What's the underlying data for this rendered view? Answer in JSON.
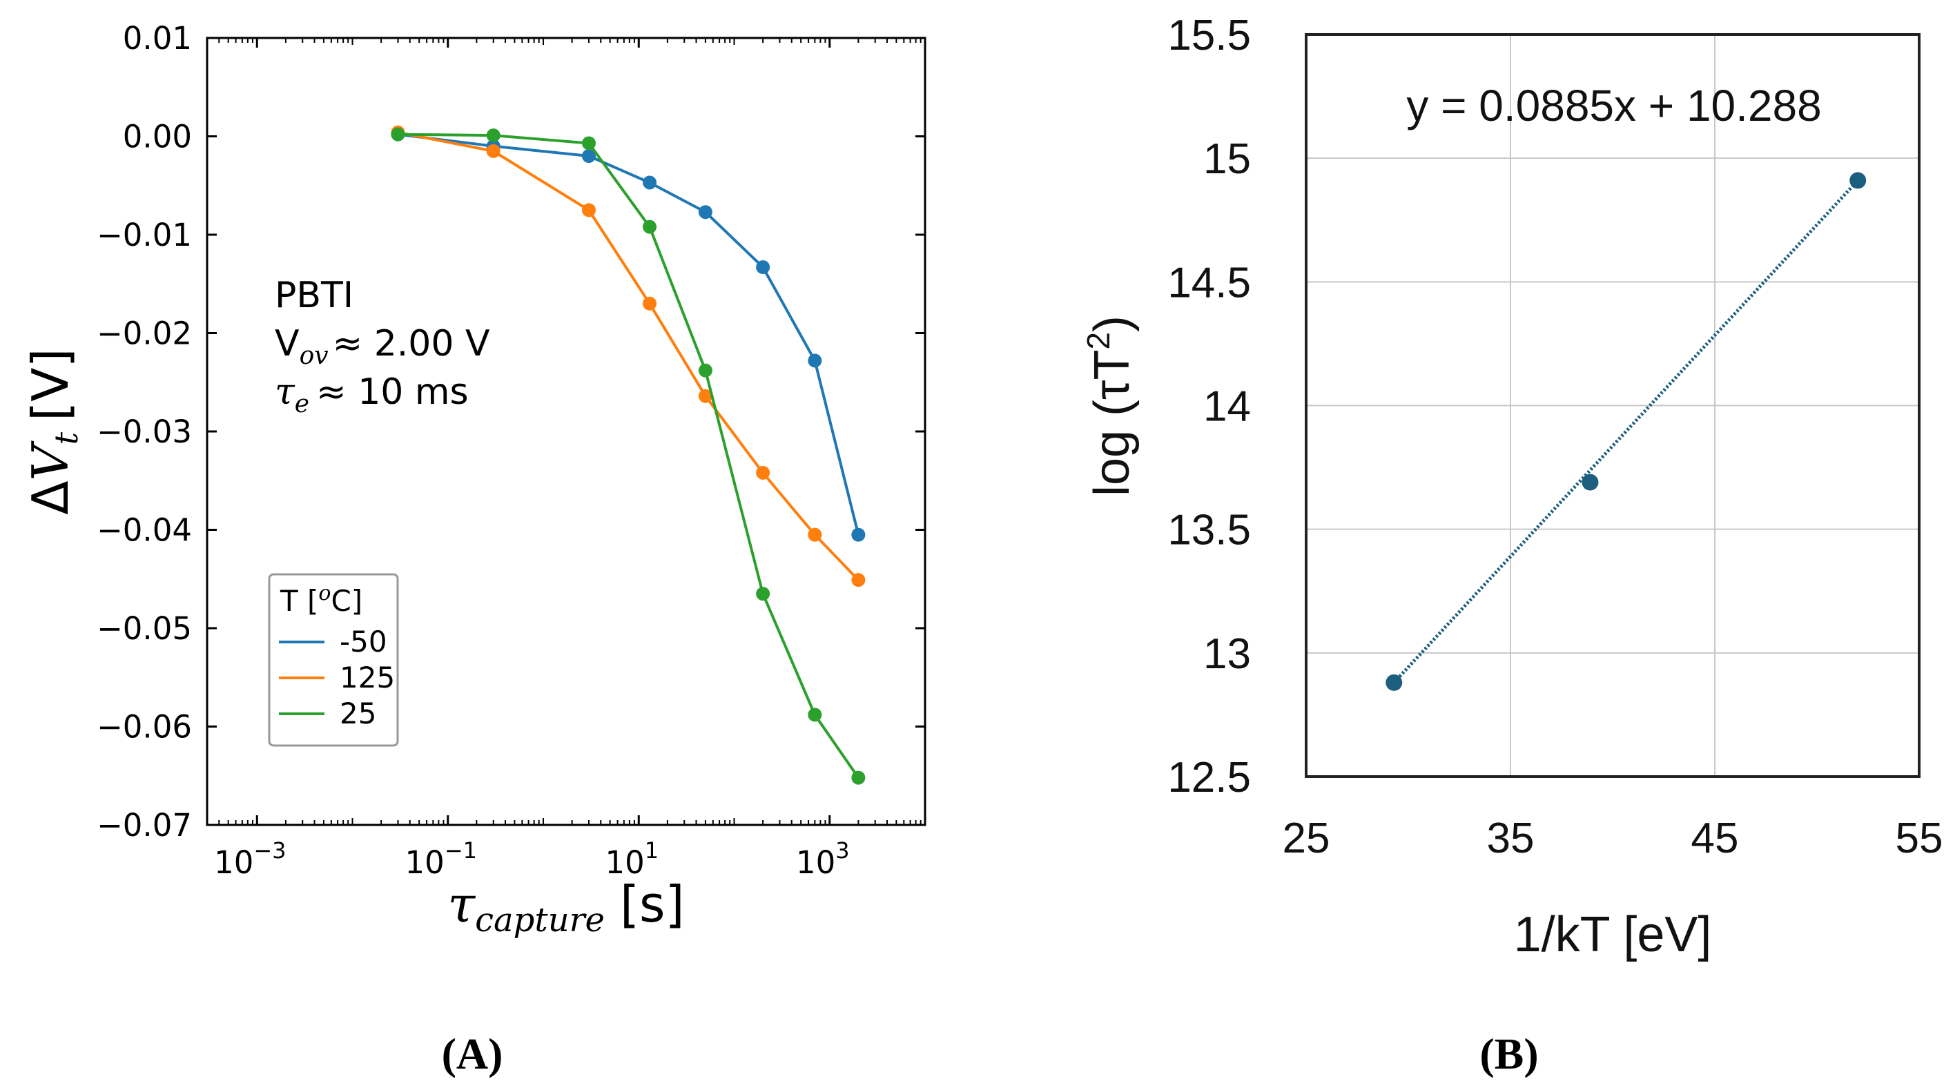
{
  "chart_data": [
    {
      "id": "A",
      "type": "line",
      "panel_label": "(A)",
      "xscale": "log",
      "xlim": [
        0.0003,
        10000
      ],
      "ylim": [
        -0.07,
        0.01
      ],
      "xtick_values": [
        0.001,
        0.1,
        10,
        1000
      ],
      "xtick_base": [
        "10",
        "10",
        "10",
        "10"
      ],
      "xtick_exp": [
        "−3",
        "−1",
        "1",
        "3"
      ],
      "ytick_values": [
        0.01,
        0.0,
        -0.01,
        -0.02,
        -0.03,
        -0.04,
        -0.05,
        -0.06,
        -0.07
      ],
      "ytick_labels": [
        "0.01",
        "0.00",
        "−0.01",
        "−0.02",
        "−0.03",
        "−0.04",
        "−0.05",
        "−0.06",
        "−0.07"
      ],
      "xlabel_symbol": "τ",
      "xlabel_sub": "capture",
      "xlabel_unit": "[s]",
      "ylabel_delta": "Δ",
      "ylabel_v": "V",
      "ylabel_sub": "t",
      "ylabel_unit": "[V]",
      "annotation": {
        "line1": "PBTI",
        "line2_v": "V",
        "line2_sub": "ov",
        "line2_rest": "≈ 2.00 V",
        "line3_tau": "τ",
        "line3_sub": "e",
        "line3_rest": "≈ 10 ms"
      },
      "legend_title_pre": "T [",
      "legend_title_o": "o",
      "legend_title_post": "C]",
      "legend_position": "lower-left",
      "x": [
        0.03,
        0.3,
        3,
        13,
        50,
        200,
        700,
        2000
      ],
      "series": [
        {
          "name": "-50",
          "color": "#1f77b4",
          "values": [
            0.0002,
            -0.001,
            -0.002,
            -0.0047,
            -0.0077,
            -0.0133,
            -0.0228,
            -0.0405
          ]
        },
        {
          "name": "125",
          "color": "#ff7f0e",
          "values": [
            0.0004,
            -0.0015,
            -0.0075,
            -0.017,
            -0.0264,
            -0.0342,
            -0.0405,
            -0.0451
          ]
        },
        {
          "name": "25",
          "color": "#2ca02c",
          "values": [
            0.0002,
            0.0001,
            -0.0007,
            -0.0092,
            -0.0238,
            -0.0465,
            -0.0588,
            -0.0652
          ]
        }
      ]
    },
    {
      "id": "B",
      "type": "scatter",
      "panel_label": "(B)",
      "xlim": [
        25,
        55
      ],
      "ylim": [
        12.5,
        15.5
      ],
      "xticks": [
        25,
        35,
        45,
        55
      ],
      "yticks": [
        12.5,
        13,
        13.5,
        14,
        14.5,
        15,
        15.5
      ],
      "ytick_labels": [
        "12.5",
        "13",
        "13.5",
        "14",
        "14.5",
        "15",
        "15.5"
      ],
      "grid": true,
      "xlabel": "1/kT [eV]",
      "ylabel_pre": "log (τT",
      "ylabel_sup": "2",
      "ylabel_post": ")",
      "trendline": {
        "slope": 0.0885,
        "intercept": 10.288,
        "label": "y = 0.0885x + 10.288"
      },
      "color": "#1b5e7e",
      "points": [
        {
          "x": 29.3,
          "y": 12.88
        },
        {
          "x": 38.9,
          "y": 13.69
        },
        {
          "x": 52.0,
          "y": 14.91
        }
      ]
    }
  ]
}
